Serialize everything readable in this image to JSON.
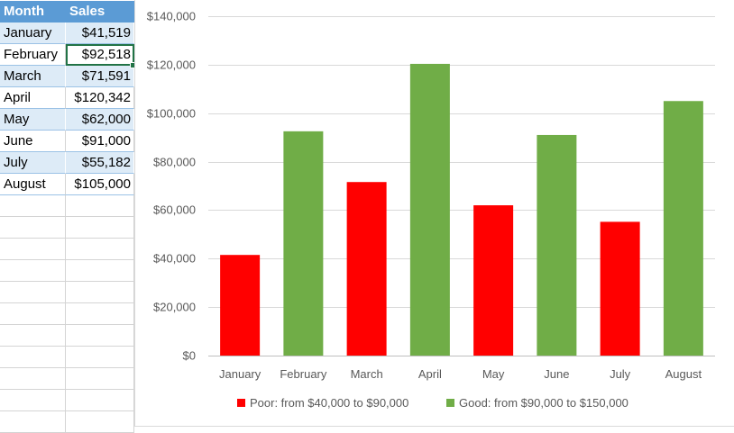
{
  "sheet": {
    "headers": [
      "Month",
      "Sales"
    ],
    "rows": [
      {
        "month": "January",
        "sales": "$41,519"
      },
      {
        "month": "February",
        "sales": "$92,518"
      },
      {
        "month": "March",
        "sales": "$71,591"
      },
      {
        "month": "April",
        "sales": "$120,342"
      },
      {
        "month": "May",
        "sales": "$62,000"
      },
      {
        "month": "June",
        "sales": "$91,000"
      },
      {
        "month": "July",
        "sales": "$55,182"
      },
      {
        "month": "August",
        "sales": "$105,000"
      }
    ],
    "selected_row": 1
  },
  "colors": {
    "poor": "#ff0000",
    "good": "#70ad47",
    "header_fill": "#5b9bd5",
    "band_fill": "#ddebf7",
    "selection": "#217346"
  },
  "chart_data": {
    "type": "bar",
    "title": "",
    "xlabel": "",
    "ylabel": "",
    "categories": [
      "January",
      "February",
      "March",
      "April",
      "May",
      "June",
      "July",
      "August"
    ],
    "values": [
      41519,
      92518,
      71591,
      120342,
      62000,
      91000,
      55182,
      105000
    ],
    "series": [
      {
        "name": "Poor: from $40,000 to $90,000",
        "values": [
          41519,
          null,
          71591,
          null,
          62000,
          null,
          55182,
          null
        ]
      },
      {
        "name": "Good: from $90,000 to $150,000",
        "values": [
          null,
          92518,
          null,
          120342,
          null,
          91000,
          null,
          105000
        ]
      }
    ],
    "ylim": [
      0,
      140000
    ],
    "yticks": [
      0,
      20000,
      40000,
      60000,
      80000,
      100000,
      120000,
      140000
    ],
    "ytick_labels": [
      "$0",
      "$20,000",
      "$40,000",
      "$60,000",
      "$80,000",
      "$100,000",
      "$120,000",
      "$140,000"
    ],
    "grid": true,
    "legend_position": "bottom"
  }
}
